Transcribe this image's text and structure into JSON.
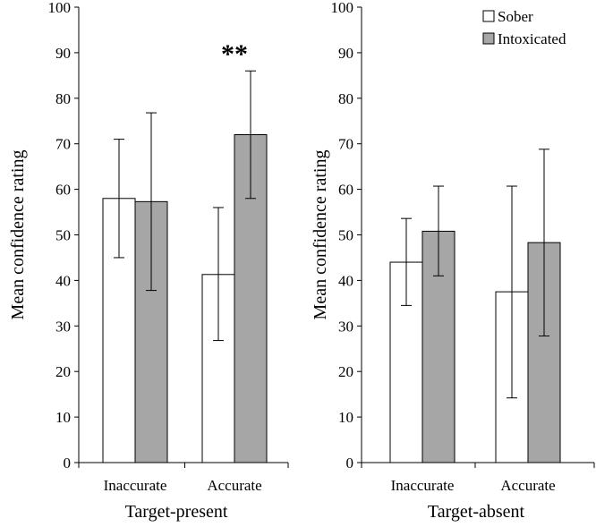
{
  "colors": {
    "sober": "#ffffff",
    "intoxicated": "#a6a6a6",
    "axis": "#000000"
  },
  "legend": {
    "placement": "top-right",
    "items": [
      {
        "name": "Sober",
        "color": "#ffffff"
      },
      {
        "name": "Intoxicated",
        "color": "#a6a6a6"
      }
    ]
  },
  "chart_data": [
    {
      "type": "bar",
      "xlabel": "Target-present",
      "ylabel": "Mean confidence rating",
      "categories": [
        "Inaccurate",
        "Accurate"
      ],
      "ylim": [
        0,
        100
      ],
      "yticks": [
        0,
        10,
        20,
        30,
        40,
        50,
        60,
        70,
        80,
        90,
        100
      ],
      "grid": false,
      "series": [
        {
          "name": "Sober",
          "values": [
            58,
            41.3
          ],
          "error_low": [
            45,
            26.8
          ],
          "error_high": [
            71,
            56
          ]
        },
        {
          "name": "Intoxicated",
          "values": [
            57.3,
            72
          ],
          "error_low": [
            37.8,
            58
          ],
          "error_high": [
            76.8,
            86
          ]
        }
      ],
      "annotations": [
        {
          "text": "**",
          "category": "Accurate"
        }
      ]
    },
    {
      "type": "bar",
      "xlabel": "Target-absent",
      "ylabel": "Mean confidence rating",
      "categories": [
        "Inaccurate",
        "Accurate"
      ],
      "ylim": [
        0,
        100
      ],
      "yticks": [
        0,
        10,
        20,
        30,
        40,
        50,
        60,
        70,
        80,
        90,
        100
      ],
      "grid": false,
      "series": [
        {
          "name": "Sober",
          "values": [
            44,
            37.5
          ],
          "error_low": [
            34.5,
            14.2
          ],
          "error_high": [
            53.6,
            60.7
          ]
        },
        {
          "name": "Intoxicated",
          "values": [
            50.8,
            48.3
          ],
          "error_low": [
            41,
            27.8
          ],
          "error_high": [
            60.7,
            68.8
          ]
        }
      ]
    }
  ]
}
